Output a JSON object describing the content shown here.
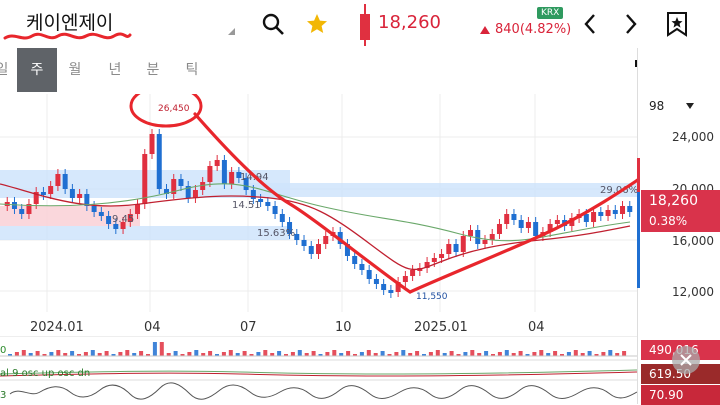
{
  "header": {
    "stock_name": "케이엔제이",
    "price": "18,260",
    "change": "840(4.82%)",
    "exchange": "KRX"
  },
  "tabs": [
    {
      "label": "일",
      "active": false
    },
    {
      "label": "주",
      "active": true
    },
    {
      "label": "월",
      "active": false
    },
    {
      "label": "년",
      "active": false
    },
    {
      "label": "분",
      "active": false
    },
    {
      "label": "틱",
      "active": false
    }
  ],
  "panel": {
    "period_value": "98",
    "y_ticks": [
      "24,000",
      "20,000",
      "16,000",
      "12,000"
    ],
    "current_price": "18,260",
    "current_change_pct": "0.38%",
    "indicator_values": [
      "490,016",
      "619.50",
      "70.90"
    ]
  },
  "chart_data": {
    "type": "candlestick",
    "x_labels": [
      "2024.01",
      "04",
      "07",
      "10",
      "2025.01",
      "04"
    ],
    "annotations": {
      "high": "26,450",
      "low": "11,550",
      "bands": [
        "14.94",
        "14.51",
        "9.45",
        "15.63%",
        "29.06%"
      ]
    },
    "indicator_labels": [
      "al 9 osc up osc dn"
    ]
  },
  "colors": {
    "up": "#e03040",
    "down": "#1f6fd1",
    "band": "#cfe4fb",
    "band_red": "#f9d3d8",
    "scribble": "#e8262c"
  }
}
